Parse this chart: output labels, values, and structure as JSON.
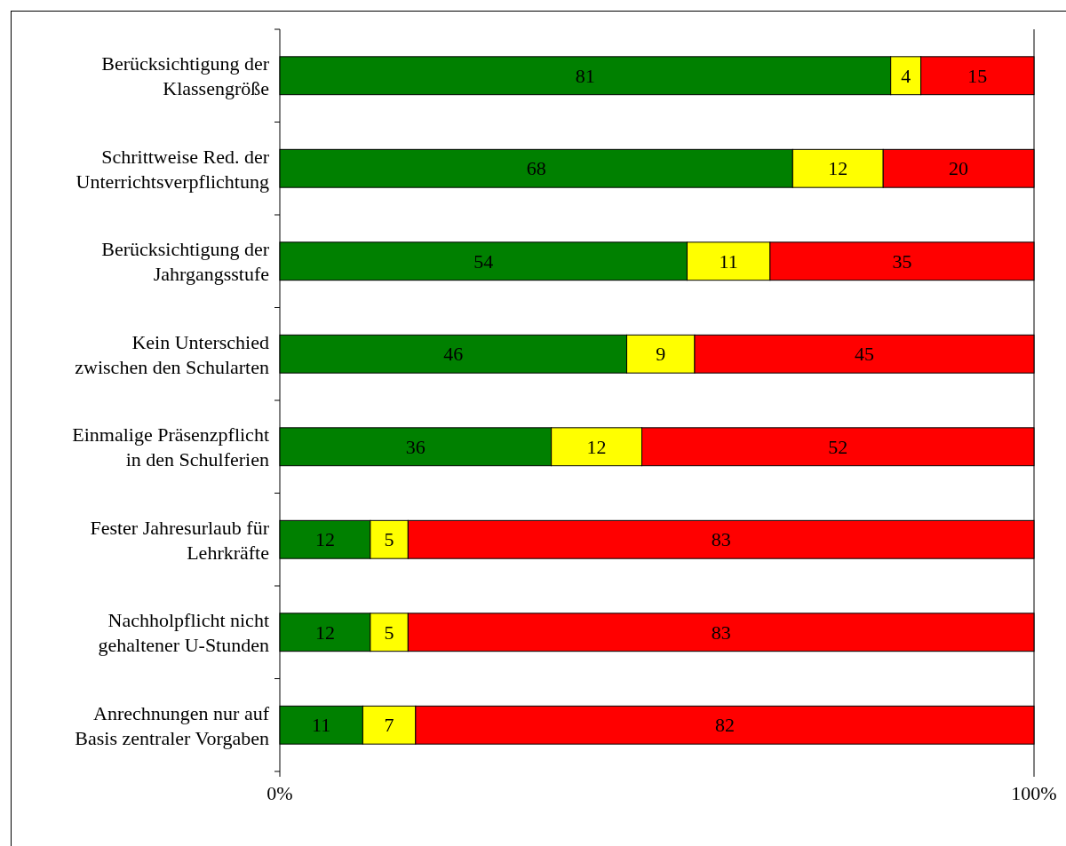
{
  "chart_data": {
    "type": "bar",
    "orientation": "horizontal",
    "stacked": true,
    "data_labels": true,
    "categories": [
      "Berücksichtigung der\nKlassengröße",
      "Schrittweise Red. der\nUnterrichtsverpflichtung",
      "Berücksichtigung der\nJahrgangsstufe",
      "Kein Unterschied\nzwischen den Schularten",
      "Einmalige Präsenzpflicht\nin den Schulferien",
      "Fester Jahresurlaub für\nLehrkräfte",
      "Nachholpflicht nicht\ngehaltener U-Stunden",
      "Anrechnungen nur auf\nBasis zentraler Vorgaben"
    ],
    "series": [
      {
        "color": "#008000",
        "values": [
          81,
          68,
          54,
          46,
          36,
          12,
          12,
          11
        ]
      },
      {
        "color": "#ffff00",
        "values": [
          4,
          12,
          11,
          9,
          12,
          5,
          5,
          7
        ]
      },
      {
        "color": "#ff0000",
        "values": [
          15,
          20,
          35,
          45,
          52,
          83,
          83,
          82
        ]
      }
    ],
    "xlim": [
      0,
      100
    ],
    "xticks": [
      {
        "value": 0,
        "label": "0%"
      },
      {
        "value": 100,
        "label": "100%"
      }
    ]
  }
}
